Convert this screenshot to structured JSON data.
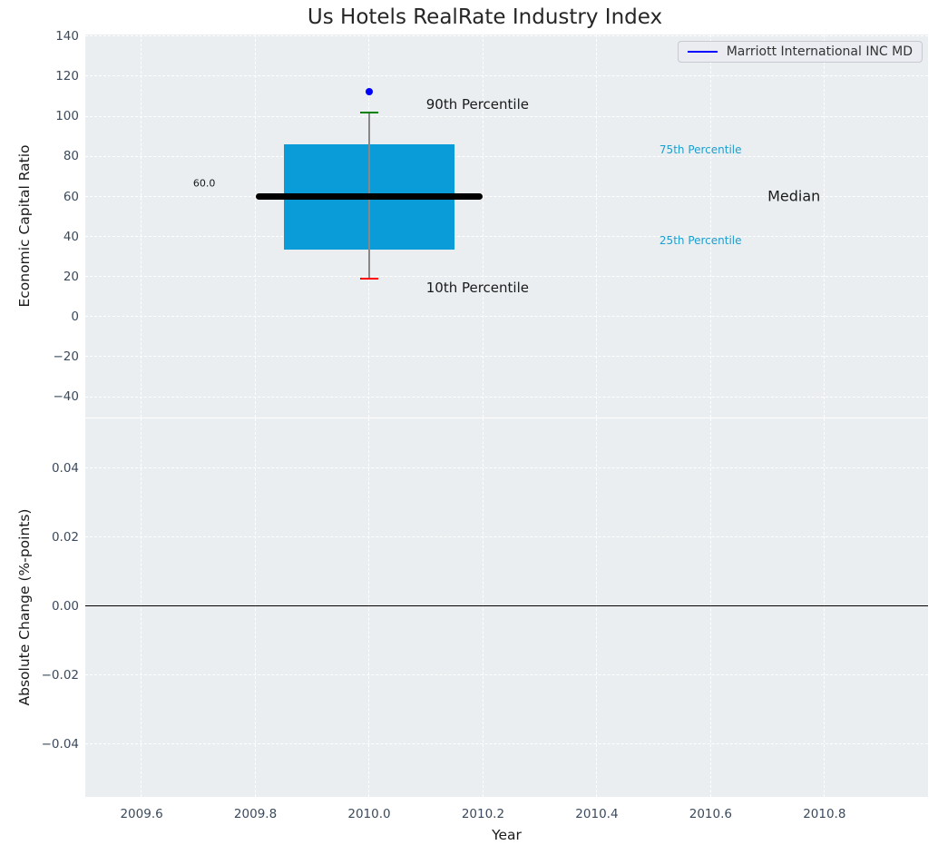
{
  "chart_data": {
    "type": "boxplot",
    "title": "Us Hotels RealRate Industry Index",
    "xlabel": "Year",
    "x_ticks": [
      {
        "v": 2009.6,
        "label": "2009.6"
      },
      {
        "v": 2009.8,
        "label": "2009.8"
      },
      {
        "v": 2010.0,
        "label": "2010.0"
      },
      {
        "v": 2010.2,
        "label": "2010.2"
      },
      {
        "v": 2010.4,
        "label": "2010.4"
      },
      {
        "v": 2010.6,
        "label": "2010.6"
      },
      {
        "v": 2010.8,
        "label": "2010.8"
      }
    ],
    "panels": [
      {
        "name": "economic-capital-ratio",
        "ylabel": "Economic Capital Ratio",
        "xlim": [
          2009.501,
          2010.982
        ],
        "ylim": [
          -50.3,
          140.9
        ],
        "grid": true,
        "y_ticks": [
          {
            "v": 140,
            "label": "140"
          },
          {
            "v": 120,
            "label": "120"
          },
          {
            "v": 100,
            "label": "100"
          },
          {
            "v": 80,
            "label": "80"
          },
          {
            "v": 60,
            "label": "60"
          },
          {
            "v": 40,
            "label": "40"
          },
          {
            "v": 20,
            "label": "20"
          },
          {
            "v": 0,
            "label": "0"
          },
          {
            "v": -20,
            "label": "−20"
          },
          {
            "v": -40,
            "label": "−40"
          }
        ],
        "box": {
          "x": 2010.0,
          "p10": 19,
          "p25": 33.5,
          "median": 60,
          "p75": 86.3,
          "p90": 102,
          "company_value": 112.3,
          "box_half_width": 0.15,
          "median_half_width": 0.2,
          "cap_half_width": 0.016
        },
        "annotations": [
          {
            "text": "90th Percentile",
            "x": 2010.1,
            "y": 106.0,
            "color": "#1a1a1a",
            "size": 15,
            "ha": "left"
          },
          {
            "text": "10th Percentile",
            "x": 2010.1,
            "y": 14.5,
            "color": "#1a1a1a",
            "size": 15,
            "ha": "left"
          },
          {
            "text": "60.0",
            "x": 2009.71,
            "y": 66.5,
            "color": "#1a1a1a",
            "size": 11,
            "ha": "center"
          },
          {
            "text": "75th Percentile",
            "x": 2010.51,
            "y": 83.3,
            "color": "#1f9ece",
            "size": 12,
            "ha": "left"
          },
          {
            "text": "25th Percentile",
            "x": 2010.51,
            "y": 38.0,
            "color": "#1f9ece",
            "size": 12,
            "ha": "left"
          },
          {
            "text": "Median",
            "x": 2010.7,
            "y": 60.1,
            "color": "#1a1a1a",
            "size": 16,
            "ha": "left"
          }
        ],
        "legend": {
          "label": "Marriott International INC MD",
          "line_color": "#0000ff",
          "position": "upper-right"
        }
      },
      {
        "name": "absolute-change",
        "ylabel": "Absolute Change (%-points)",
        "xlim": [
          2009.501,
          2010.982
        ],
        "ylim": [
          -0.0553,
          0.0545
        ],
        "grid": true,
        "y_ticks": [
          {
            "v": 0.04,
            "label": "0.04"
          },
          {
            "v": 0.02,
            "label": "0.02"
          },
          {
            "v": 0.0,
            "label": "0.00"
          },
          {
            "v": -0.02,
            "label": "−0.02"
          },
          {
            "v": -0.04,
            "label": "−0.04"
          }
        ],
        "zero_line": 0.0
      }
    ],
    "colors": {
      "box_fill": "#0a9cd8",
      "median_line": "#000000",
      "whisker": "#888888",
      "cap_90th": "#008000",
      "cap_10th": "#ff0000",
      "company_marker": "#0000ff",
      "plot_bg": "#eaeef0",
      "grid": "#ffffff",
      "tick_label": "#3b4a5c",
      "percentile_label": "#1f9ece",
      "zero_line": "#000000"
    }
  }
}
